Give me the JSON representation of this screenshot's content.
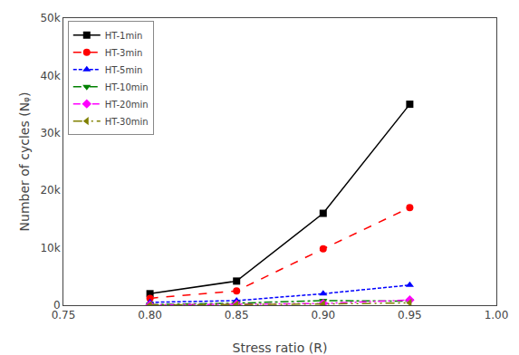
{
  "chart_data": {
    "type": "line",
    "x": [
      0.8,
      0.85,
      0.9,
      0.95
    ],
    "series": [
      {
        "name": "HT-1min",
        "values": [
          2000,
          4200,
          16000,
          35000
        ],
        "color": "#000000",
        "marker": "square",
        "line_style": "solid"
      },
      {
        "name": "HT-3min",
        "values": [
          1200,
          2500,
          9800,
          17000
        ],
        "color": "#ff0000",
        "marker": "circle",
        "line_style": "dashed"
      },
      {
        "name": "HT-5min",
        "values": [
          500,
          800,
          2000,
          3500
        ],
        "color": "#0000ff",
        "marker": "triangle-up",
        "line_style": "dotted"
      },
      {
        "name": "HT-10min",
        "values": [
          100,
          350,
          800,
          700
        ],
        "color": "#008000",
        "marker": "triangle-down",
        "line_style": "dashdot"
      },
      {
        "name": "HT-20min",
        "values": [
          50,
          150,
          300,
          900
        ],
        "color": "#ff00ff",
        "marker": "diamond",
        "line_style": "dashdotdot"
      },
      {
        "name": "HT-30min",
        "values": [
          30,
          100,
          200,
          400
        ],
        "color": "#808000",
        "marker": "triangle-left",
        "line_style": "longdashdotdot"
      }
    ],
    "xlim": [
      0.75,
      1.0
    ],
    "ylim": [
      0,
      50000
    ],
    "xticks": [
      0.75,
      {
        "value": 0.8,
        "label": "0.80"
      },
      0.85,
      {
        "value": 0.9,
        "label": "0.90"
      },
      0.95,
      {
        "value": 1.0,
        "label": "1.00"
      }
    ],
    "yticks": [
      0,
      {
        "value": 10000,
        "label": "10k"
      },
      {
        "value": 20000,
        "label": "20k"
      },
      {
        "value": 30000,
        "label": "30k"
      },
      {
        "value": 40000,
        "label": "40k"
      },
      {
        "value": 50000,
        "label": "50k"
      }
    ],
    "xlabel": "Stress ratio (R)",
    "ylabel": "Number of cycles (Nᵩ)",
    "grid": false,
    "legend": "upper left"
  }
}
